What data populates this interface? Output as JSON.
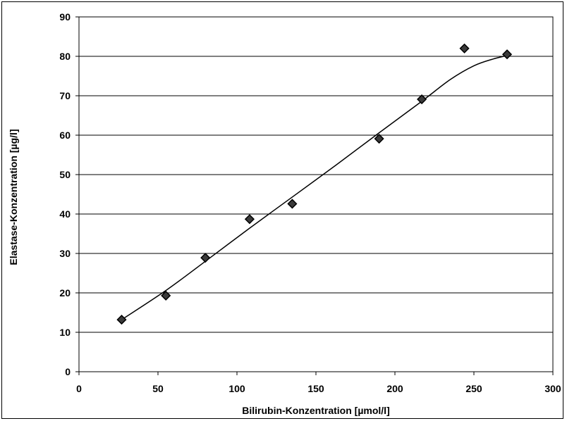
{
  "chart_data": {
    "type": "scatter",
    "xlabel": "Bilirubin-Konzentration [µmol/l]",
    "ylabel": "Elastase-Konzentration [µg/l]",
    "xlim": [
      0,
      300
    ],
    "ylim": [
      0,
      90
    ],
    "x_ticks": [
      0,
      50,
      100,
      150,
      200,
      250,
      300
    ],
    "y_ticks": [
      0,
      10,
      20,
      30,
      40,
      50,
      60,
      70,
      80,
      90
    ],
    "grid": "horizontal",
    "series": [
      {
        "marker": "diamond",
        "x": [
          27,
          55,
          80,
          108,
          135,
          190,
          217,
          244,
          271
        ],
        "y": [
          13.2,
          19.3,
          28.9,
          38.7,
          42.6,
          59.1,
          69.1,
          82.0,
          80.5
        ]
      }
    ],
    "trendline": {
      "x": [
        27,
        55,
        80,
        108,
        135,
        163,
        190,
        217,
        235,
        250,
        262,
        271
      ],
      "y": [
        13.2,
        20.6,
        28.0,
        36.4,
        44.3,
        52.5,
        60.6,
        68.6,
        74.1,
        77.6,
        79.3,
        80.2
      ]
    },
    "colors": {
      "marker": "#000000",
      "line": "#000000",
      "grid": "#000000"
    }
  }
}
